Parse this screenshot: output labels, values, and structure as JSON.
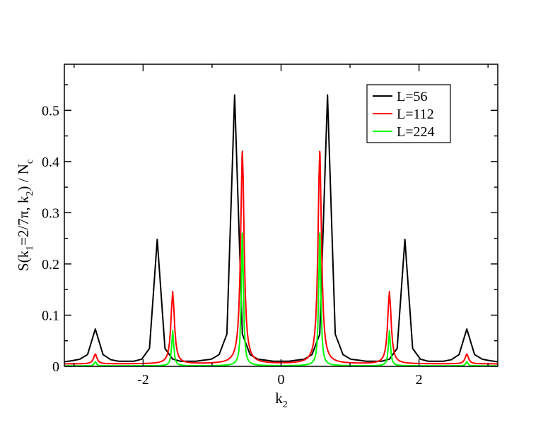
{
  "chart_data": {
    "type": "line",
    "title": "",
    "xlabel": "k",
    "xlabel_sub": "2",
    "ylabel_parts": [
      {
        "t": "S(k"
      },
      {
        "t": "1",
        "sub": true
      },
      {
        "t": "=2/7π, k"
      },
      {
        "t": "2",
        "sub": true
      },
      {
        "t": ") / N"
      },
      {
        "t": "c",
        "sub": true
      }
    ],
    "xlim": [
      -3.1416,
      3.1416
    ],
    "ylim": [
      0,
      0.59
    ],
    "xticks": [
      -2,
      0,
      2
    ],
    "yticks": [
      0,
      0.1,
      0.2,
      0.3,
      0.4,
      0.5
    ],
    "ytick_labels": [
      "0",
      "0.1",
      "0.2",
      "0.3",
      "0.4",
      "0.5"
    ],
    "xtick_labels": [
      "-2",
      "0",
      "2"
    ],
    "grid": false,
    "legend_position": "top-right",
    "series": [
      {
        "name": "L=56",
        "color": "#000000",
        "x": [
          -3.1416,
          -3.0294,
          -2.9172,
          -2.805,
          -2.6928,
          -2.5806,
          -2.4684,
          -2.3562,
          -2.244,
          -2.1318,
          -2.0196,
          -1.9074,
          -1.7952,
          -1.683,
          -1.5708,
          -1.4586,
          -1.3464,
          -1.2342,
          -1.122,
          -1.0098,
          -0.8976,
          -0.7854,
          -0.6732,
          -0.561,
          -0.4488,
          -0.3366,
          -0.2244,
          -0.1122,
          0.0,
          0.1122,
          0.2244,
          0.3366,
          0.4488,
          0.561,
          0.6732,
          0.7854,
          0.8976,
          1.0098,
          1.122,
          1.2342,
          1.3464,
          1.4586,
          1.5708,
          1.683,
          1.7952,
          1.9074,
          2.0196,
          2.1318,
          2.244,
          2.3562,
          2.4684,
          2.5806,
          2.6928,
          2.805,
          2.9172,
          3.0294,
          3.1416
        ],
        "y": [
          0.009,
          0.011,
          0.014,
          0.023,
          0.073,
          0.023,
          0.013,
          0.01,
          0.01,
          0.01,
          0.014,
          0.035,
          0.248,
          0.035,
          0.014,
          0.01,
          0.01,
          0.01,
          0.012,
          0.014,
          0.023,
          0.063,
          0.53,
          0.063,
          0.023,
          0.014,
          0.012,
          0.01,
          0.01,
          0.01,
          0.012,
          0.014,
          0.023,
          0.063,
          0.53,
          0.063,
          0.023,
          0.014,
          0.012,
          0.01,
          0.01,
          0.01,
          0.014,
          0.035,
          0.248,
          0.035,
          0.014,
          0.01,
          0.01,
          0.01,
          0.013,
          0.023,
          0.073,
          0.023,
          0.014,
          0.011,
          0.009
        ]
      },
      {
        "name": "L=112",
        "color": "#ff0000",
        "peaks": [
          {
            "x": -2.6928,
            "y": 0.024,
            "base": 0.005
          },
          {
            "x": -1.5708,
            "y": 0.145,
            "base": 0.004
          },
          {
            "x": -0.561,
            "y": 0.42,
            "base": 0.005
          },
          {
            "x": 0.561,
            "y": 0.42,
            "base": 0.005
          },
          {
            "x": 1.5708,
            "y": 0.145,
            "base": 0.004
          },
          {
            "x": 2.6928,
            "y": 0.024,
            "base": 0.005
          }
        ]
      },
      {
        "name": "L=224",
        "color": "#00ff00",
        "peaks": [
          {
            "x": -2.6928,
            "y": 0.009,
            "base": 0.001
          },
          {
            "x": -1.5708,
            "y": 0.07,
            "base": 0.001
          },
          {
            "x": -0.561,
            "y": 0.26,
            "base": 0.001
          },
          {
            "x": 0.561,
            "y": 0.26,
            "base": 0.001
          },
          {
            "x": 1.5708,
            "y": 0.07,
            "base": 0.001
          },
          {
            "x": 2.6928,
            "y": 0.009,
            "base": 0.001
          }
        ]
      }
    ]
  }
}
